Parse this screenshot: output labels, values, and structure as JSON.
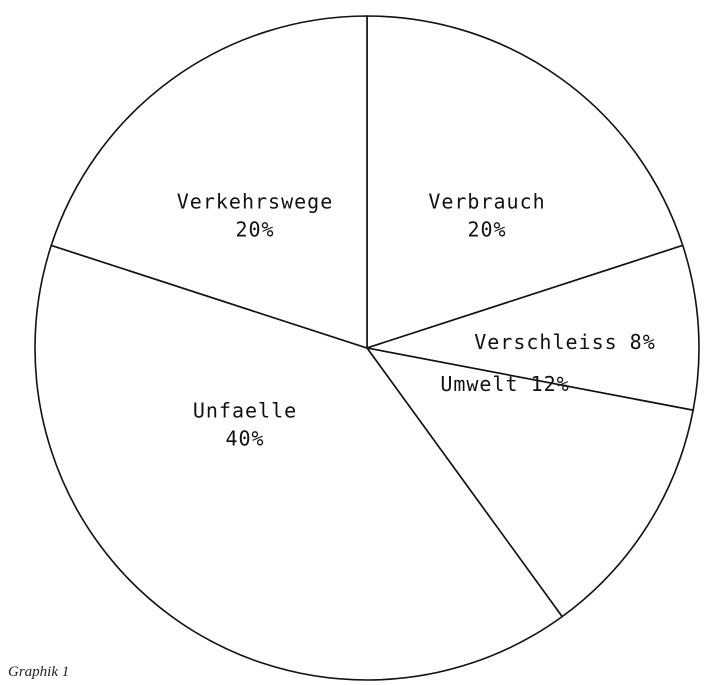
{
  "chart_data": {
    "type": "pie",
    "categories": [
      "Verbrauch",
      "Verschleiss",
      "Umwelt",
      "Unfaelle",
      "Verkehrswege"
    ],
    "values": [
      20,
      8,
      12,
      40,
      20
    ],
    "value_labels": [
      "20%",
      "8%",
      "12%",
      "40%",
      "20%"
    ],
    "color": "#ffffff",
    "caption": "Graphik 1"
  }
}
